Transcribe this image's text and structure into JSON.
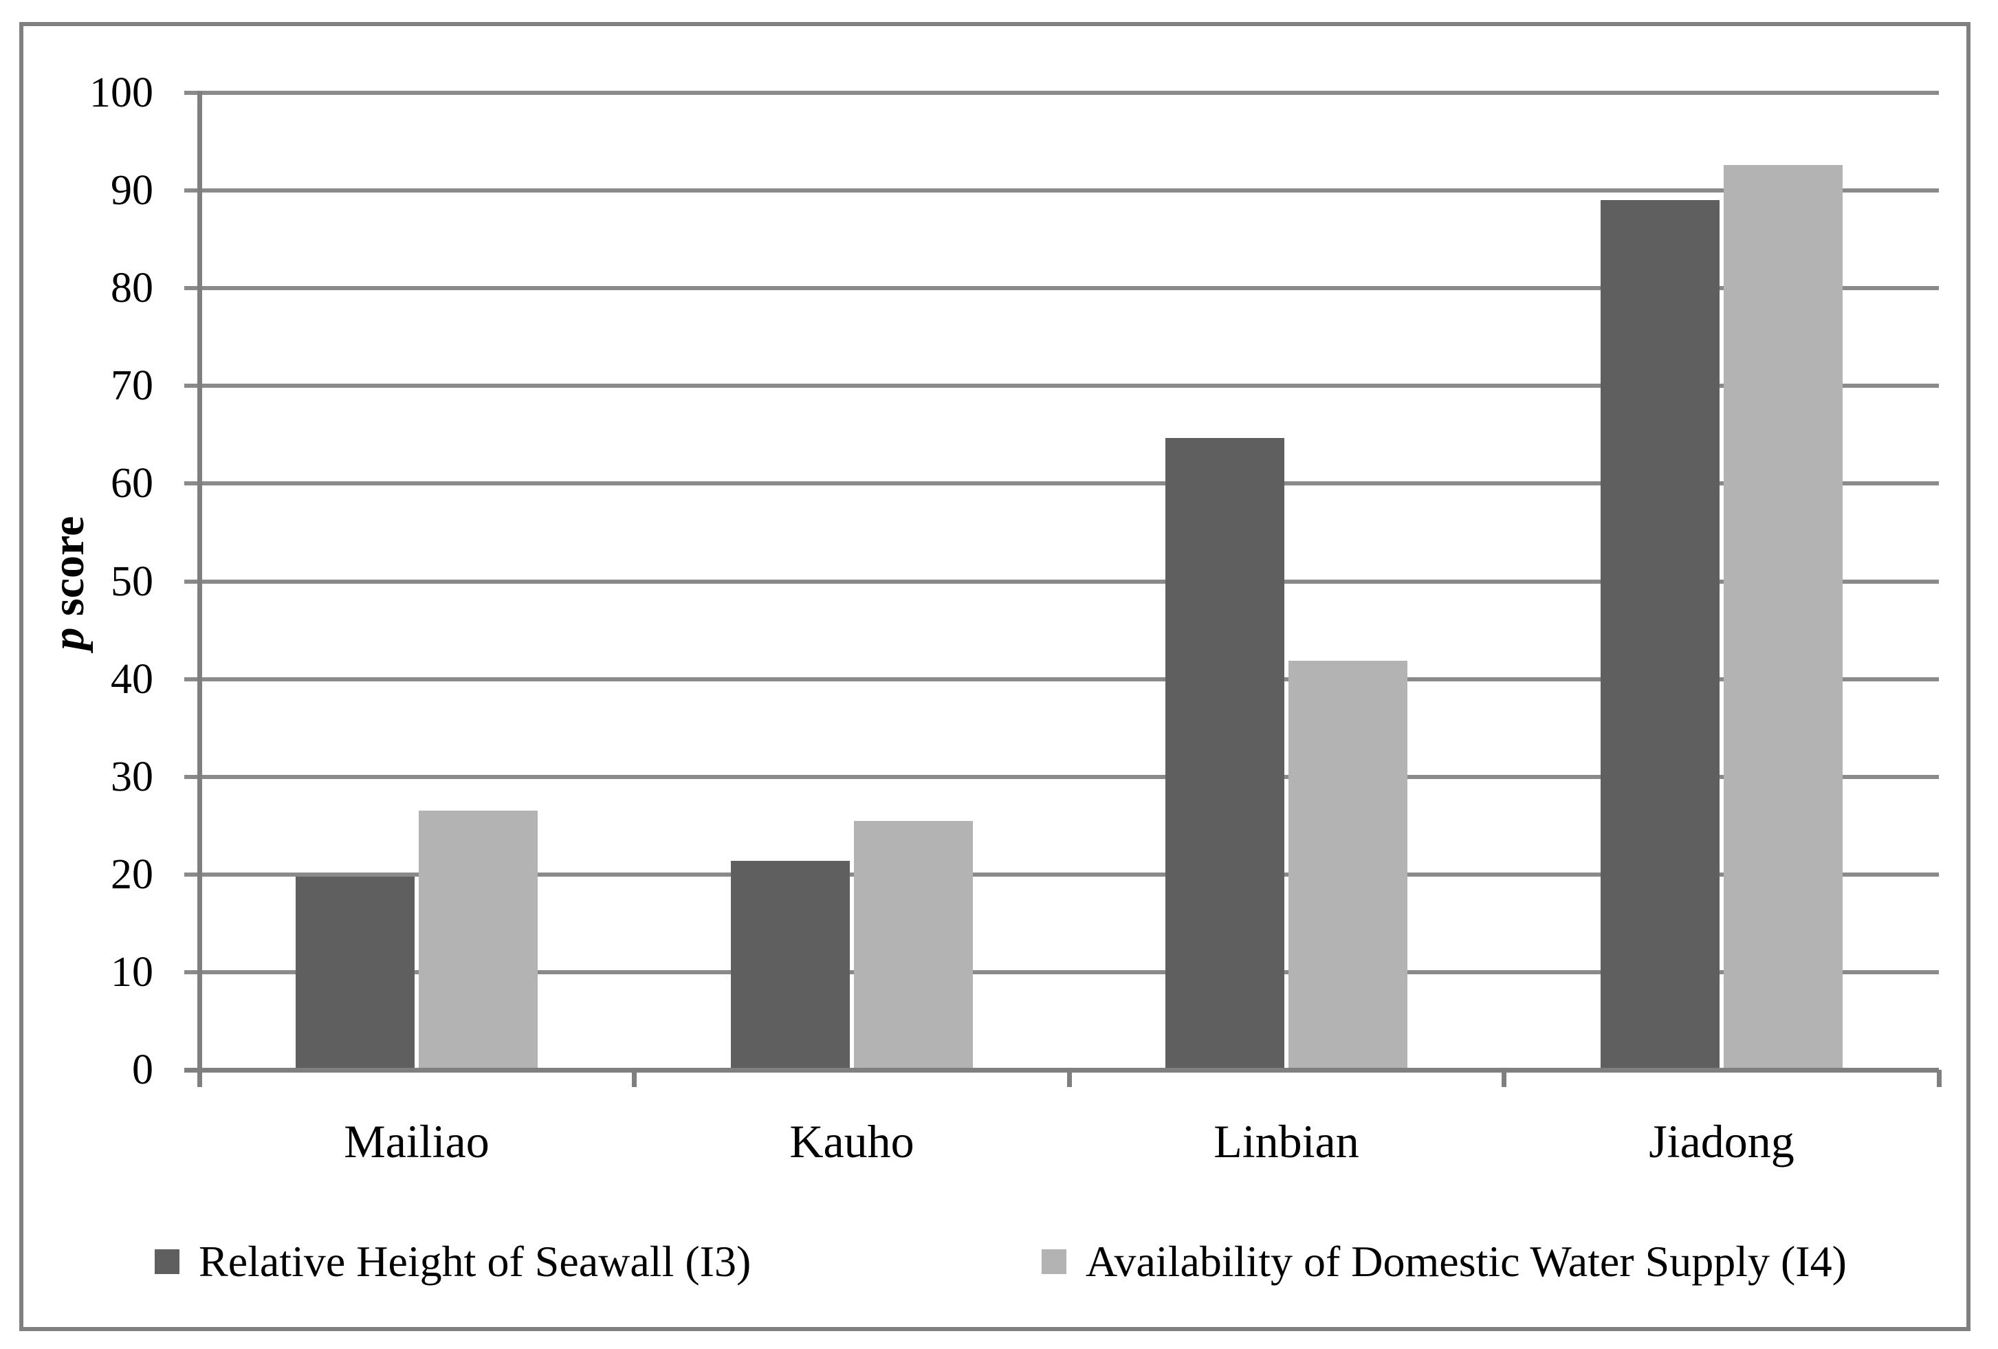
{
  "chart_data": {
    "type": "bar",
    "title": "",
    "categories": [
      "Mailiao",
      "Kauho",
      "Linbian",
      "Jiadong"
    ],
    "series": [
      {
        "name": "Relative Height of Seawall (I3)",
        "values": [
          19.8,
          21.4,
          64.7,
          89.0
        ],
        "color": "#5f5f5f"
      },
      {
        "name": "Availability of Domestic Water Supply (I4)",
        "values": [
          26.5,
          25.5,
          41.9,
          92.6
        ],
        "color": "#b3b3b3"
      }
    ],
    "ylabel_italic": "p",
    "ylabel_rest": " score",
    "ylim": [
      0,
      100
    ],
    "y_tick_step": 10,
    "y_tick_labels": [
      "0",
      "10",
      "20",
      "30",
      "40",
      "50",
      "60",
      "70",
      "80",
      "90",
      "100"
    ],
    "grid": true,
    "legend_position": "bottom"
  },
  "colors": {
    "gridline": "#8a8a8a",
    "axis": "#7f7f7f",
    "frame": "#808080",
    "background": "#ffffff",
    "text": "#000000"
  }
}
